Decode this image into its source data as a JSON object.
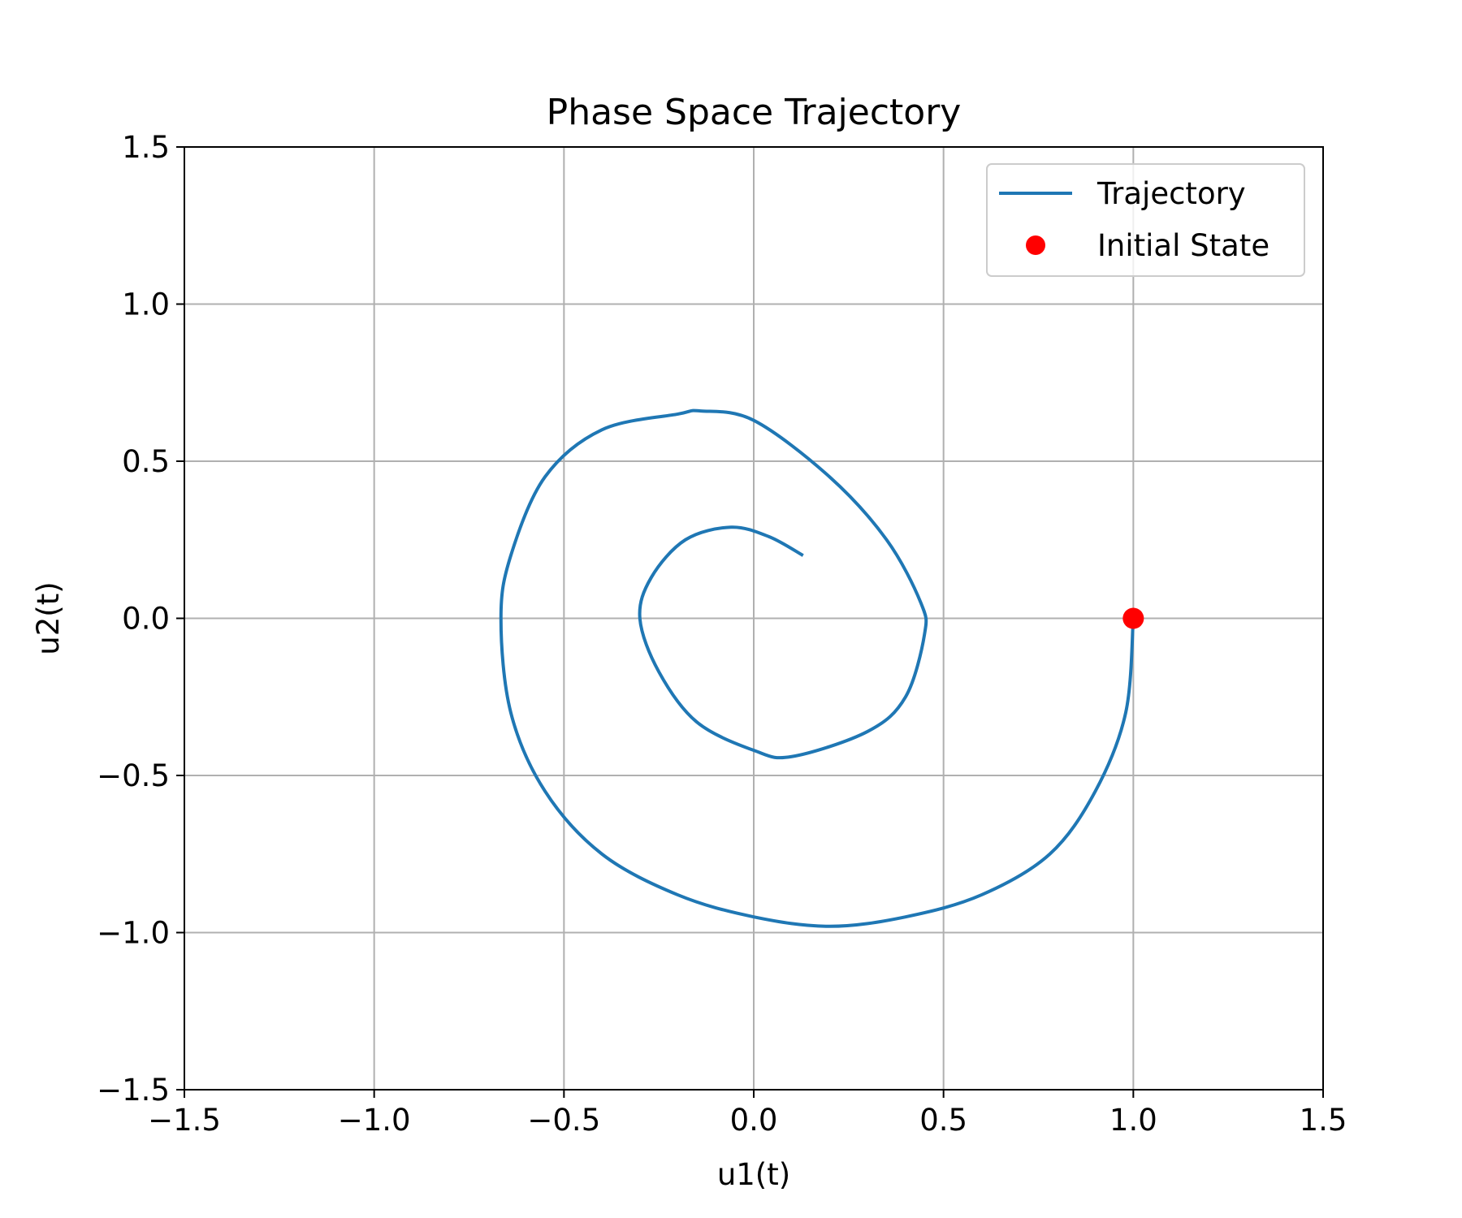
{
  "chart_data": {
    "type": "line",
    "title": "Phase Space Trajectory",
    "xlabel": "u1(t)",
    "ylabel": "u2(t)",
    "xlim": [
      -1.5,
      1.5
    ],
    "ylim": [
      -1.5,
      1.5
    ],
    "xticks": [
      -1.5,
      -1.0,
      -0.5,
      0.0,
      0.5,
      1.0,
      1.5
    ],
    "yticks": [
      -1.5,
      -1.0,
      -0.5,
      0.0,
      0.5,
      1.0,
      1.5
    ],
    "xtick_labels": [
      "−1.5",
      "−1.0",
      "−0.5",
      "0.0",
      "0.5",
      "1.0",
      "1.5"
    ],
    "ytick_labels": [
      "−1.5",
      "−1.0",
      "−0.5",
      "0.0",
      "0.5",
      "1.0",
      "1.5"
    ],
    "grid": true,
    "legend_position": "top-right",
    "series": [
      {
        "name": "Trajectory",
        "kind": "line",
        "color": "#1f77b4",
        "x": [
          1.0,
          0.98,
          0.9,
          0.78,
          0.6,
          0.4,
          0.2,
          0.0,
          -0.2,
          -0.4,
          -0.55,
          -0.64,
          -0.666,
          -0.64,
          -0.55,
          -0.4,
          -0.2,
          -0.14,
          0.0,
          0.2,
          0.35,
          0.44,
          0.45,
          0.4,
          0.3,
          0.1,
          0.0,
          -0.15,
          -0.25,
          -0.3,
          -0.27,
          -0.18,
          -0.06,
          0.04,
          0.13
        ],
        "y": [
          0.0,
          -0.3,
          -0.55,
          -0.75,
          -0.88,
          -0.95,
          -0.98,
          -0.95,
          -0.88,
          -0.75,
          -0.55,
          -0.3,
          0.0,
          0.2,
          0.45,
          0.6,
          0.65,
          0.66,
          0.63,
          0.45,
          0.25,
          0.05,
          -0.05,
          -0.25,
          -0.36,
          -0.44,
          -0.42,
          -0.33,
          -0.17,
          0.0,
          0.13,
          0.25,
          0.29,
          0.26,
          0.2
        ]
      },
      {
        "name": "Initial State",
        "kind": "marker",
        "color": "#ff0000",
        "x": [
          1.0
        ],
        "y": [
          0.0
        ]
      }
    ]
  }
}
